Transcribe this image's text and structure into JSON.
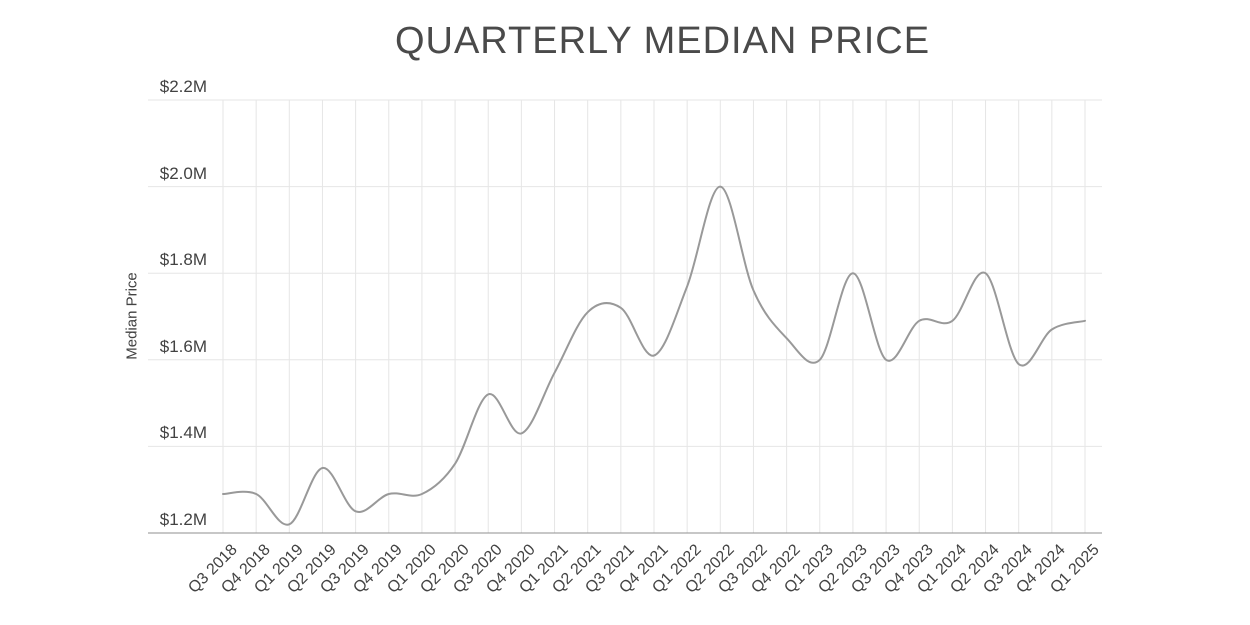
{
  "chart_data": {
    "type": "line",
    "title": "QUARTERLY MEDIAN PRICE",
    "xlabel": "",
    "ylabel": "Median Price",
    "categories": [
      "Q3 2018",
      "Q4 2018",
      "Q1 2019",
      "Q2 2019",
      "Q3 2019",
      "Q4 2019",
      "Q1 2020",
      "Q2 2020",
      "Q3 2020",
      "Q4 2020",
      "Q1 2021",
      "Q2 2021",
      "Q3 2021",
      "Q4 2021",
      "Q1 2022",
      "Q2 2022",
      "Q3 2022",
      "Q4 2022",
      "Q1 2023",
      "Q2 2023",
      "Q3 2023",
      "Q4 2023",
      "Q1 2024",
      "Q2 2024",
      "Q3 2024",
      "Q4 2024",
      "Q1 2025"
    ],
    "series": [
      {
        "name": "Median Price",
        "values": [
          1.29,
          1.29,
          1.22,
          1.35,
          1.25,
          1.29,
          1.29,
          1.36,
          1.52,
          1.43,
          1.57,
          1.71,
          1.72,
          1.61,
          1.77,
          2.0,
          1.76,
          1.65,
          1.6,
          1.8,
          1.6,
          1.69,
          1.69,
          1.8,
          1.59,
          1.67,
          1.69
        ]
      }
    ],
    "values_unit": "$M",
    "ylim": [
      1.2,
      2.2
    ],
    "y_tick_values": [
      1.2,
      1.4,
      1.6,
      1.8,
      2.0,
      2.2
    ],
    "y_tick_labels": [
      "$1.2M",
      "$1.4M",
      "$1.6M",
      "$1.8M",
      "$2.0M",
      "$2.2M"
    ],
    "grid": true,
    "legend": false,
    "line_smoothing": "spline",
    "colors": {
      "line": "#999999",
      "grid": "#e6e6e6",
      "axis": "#8f8f8f",
      "title": "#4a4a4a",
      "tick_text": "#424242"
    }
  }
}
